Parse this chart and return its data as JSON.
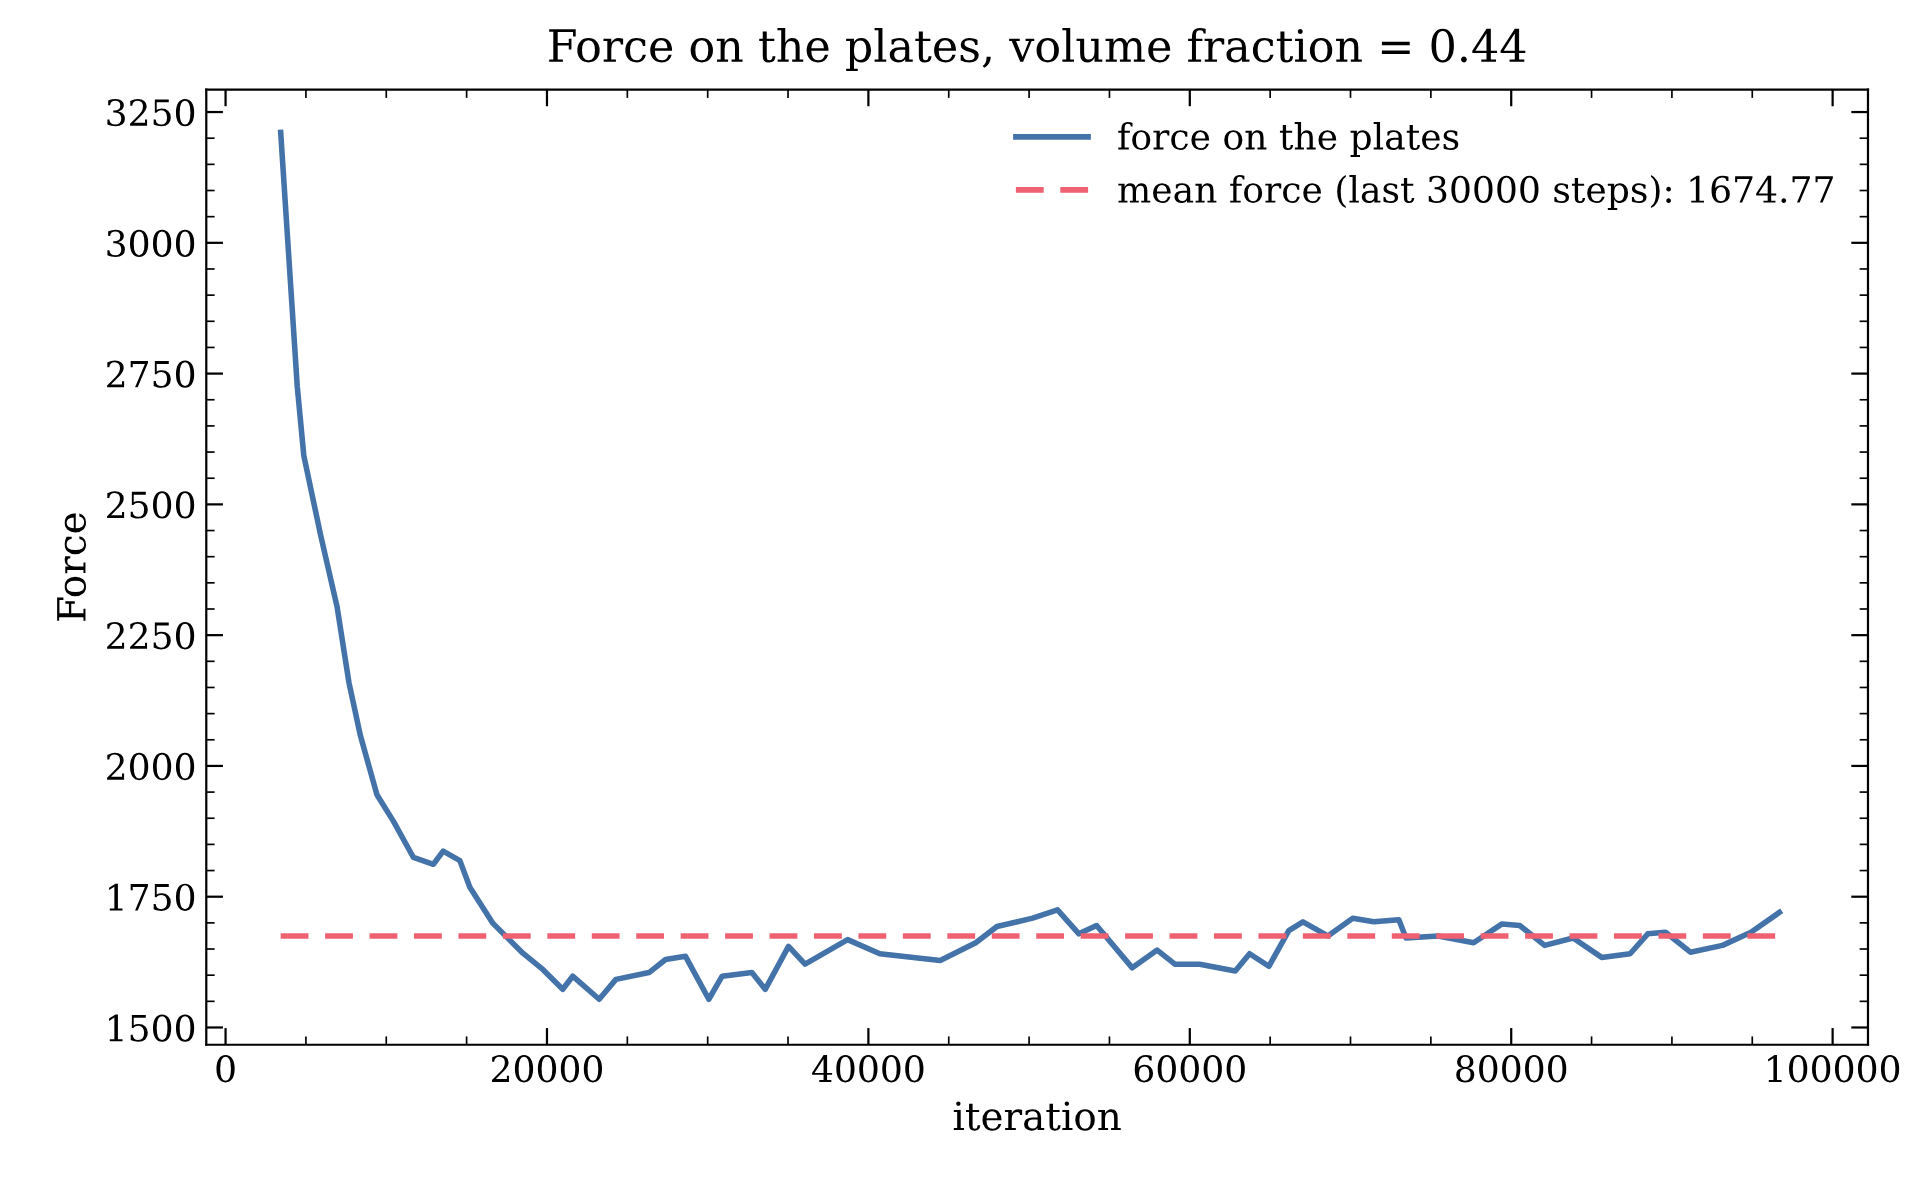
{
  "chart_data": {
    "type": "line",
    "title": "Force on the plates, volume fraction = 0.44",
    "xlabel": "iteration",
    "ylabel": "Force",
    "xlim": [
      -1200,
      102200
    ],
    "ylim": [
      1467,
      3293
    ],
    "xticks": [
      0,
      20000,
      40000,
      60000,
      80000,
      100000
    ],
    "yticks": [
      1500,
      1750,
      2000,
      2250,
      2500,
      2750,
      3000,
      3250
    ],
    "grid": false,
    "legend": "top right",
    "series": [
      {
        "name": "force on the plates",
        "color": "#4473aa",
        "line_style": "solid",
        "x": [
          3430,
          4460,
          4870,
          5910,
          6940,
          7680,
          8390,
          9420,
          10450,
          11690,
          12930,
          13540,
          14580,
          15200,
          16640,
          18500,
          19740,
          20980,
          21600,
          23250,
          24290,
          26350,
          27380,
          28620,
          30070,
          30900,
          32750,
          33580,
          35030,
          36060,
          38710,
          40710,
          44470,
          46680,
          48000,
          50220,
          51770,
          53100,
          54200,
          56420,
          57970,
          59070,
          60620,
          62830,
          63720,
          64920,
          66160,
          67040,
          68590,
          70140,
          71460,
          73010,
          73450,
          75450,
          77660,
          79430,
          80530,
          82080,
          83850,
          85630,
          87400,
          88500,
          89600,
          91150,
          93150,
          94920,
          96690
        ],
        "values": [
          3211,
          2726,
          2593,
          2442,
          2304,
          2159,
          2058,
          1945,
          1894,
          1825,
          1812,
          1837,
          1819,
          1768,
          1699,
          1642,
          1611,
          1573,
          1598,
          1554,
          1592,
          1605,
          1630,
          1636,
          1554,
          1598,
          1605,
          1573,
          1655,
          1621,
          1668,
          1641,
          1628,
          1662,
          1693,
          1709,
          1725,
          1679,
          1695,
          1614,
          1648,
          1621,
          1621,
          1608,
          1641,
          1617,
          1685,
          1702,
          1675,
          1709,
          1702,
          1706,
          1671,
          1675,
          1662,
          1698,
          1695,
          1657,
          1671,
          1634,
          1641,
          1679,
          1682,
          1644,
          1657,
          1682,
          1720
        ]
      },
      {
        "name": "mean force (last 30000 steps): 1674.77",
        "color": "#ef6070",
        "line_style": "dashed",
        "x": [
          3430,
          96690
        ],
        "values": [
          1674.77,
          1674.77
        ]
      }
    ]
  }
}
